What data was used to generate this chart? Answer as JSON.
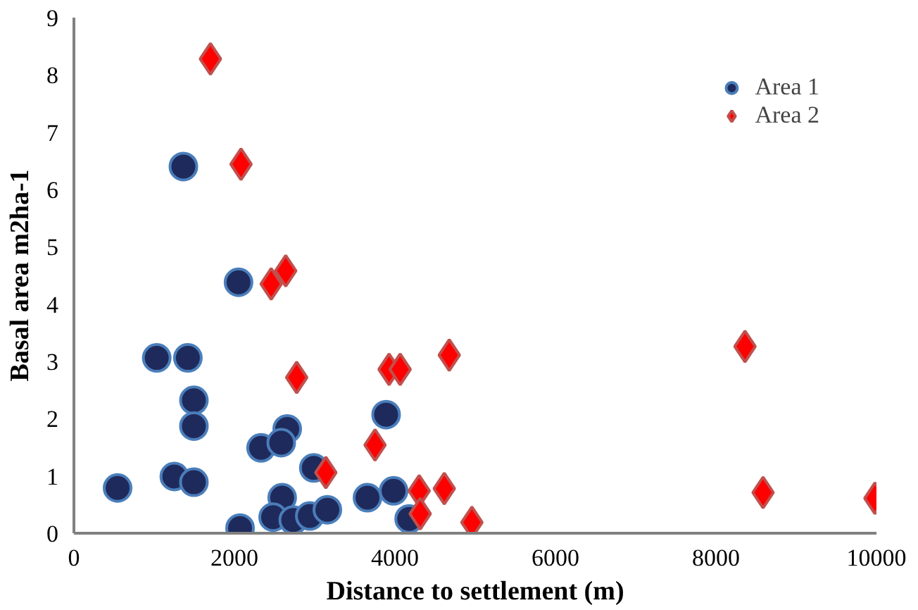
{
  "chart_data": {
    "type": "scatter",
    "xlabel": "Distance to settlement (m)",
    "ylabel": "Basal area m2ha-1",
    "xlim": [
      0,
      10000
    ],
    "xticks": [
      0,
      2000,
      4000,
      6000,
      8000,
      10000
    ],
    "ylim": [
      0,
      9
    ],
    "yticks": [
      0,
      1,
      2,
      3,
      4,
      5,
      6,
      7,
      8,
      9
    ],
    "grid": false,
    "legend": "top right",
    "series": [
      {
        "name": "Area 1",
        "color": "#1f2a5c",
        "marker": "circle",
        "x": [
          544,
          1364,
          2051,
          1032,
          1420,
          1495,
          1495,
          1251,
          1495,
          2070,
          2332,
          2658,
          2583,
          2595,
          2482,
          2733,
          2939,
          3158,
          2989,
          3658,
          3890,
          3983,
          4177
        ],
        "values": [
          0.79,
          6.4,
          4.38,
          3.06,
          3.06,
          2.32,
          1.87,
          0.99,
          0.89,
          0.09,
          1.49,
          1.82,
          1.58,
          0.62,
          0.28,
          0.23,
          0.3,
          0.41,
          1.14,
          0.62,
          2.07,
          0.74,
          0.25
        ]
      },
      {
        "name": "Area 2",
        "color": "#ff0000",
        "marker": "diamond",
        "x": [
          1701,
          2082,
          2458,
          2639,
          2776,
          3927,
          4065,
          4677,
          3139,
          3752,
          4302,
          4615,
          4315,
          4959,
          8362,
          8587,
          9981
        ],
        "values": [
          8.28,
          6.44,
          4.35,
          4.58,
          2.72,
          2.86,
          2.86,
          3.11,
          1.06,
          1.54,
          0.74,
          0.78,
          0.34,
          0.19,
          3.26,
          0.71,
          0.61
        ]
      }
    ]
  }
}
